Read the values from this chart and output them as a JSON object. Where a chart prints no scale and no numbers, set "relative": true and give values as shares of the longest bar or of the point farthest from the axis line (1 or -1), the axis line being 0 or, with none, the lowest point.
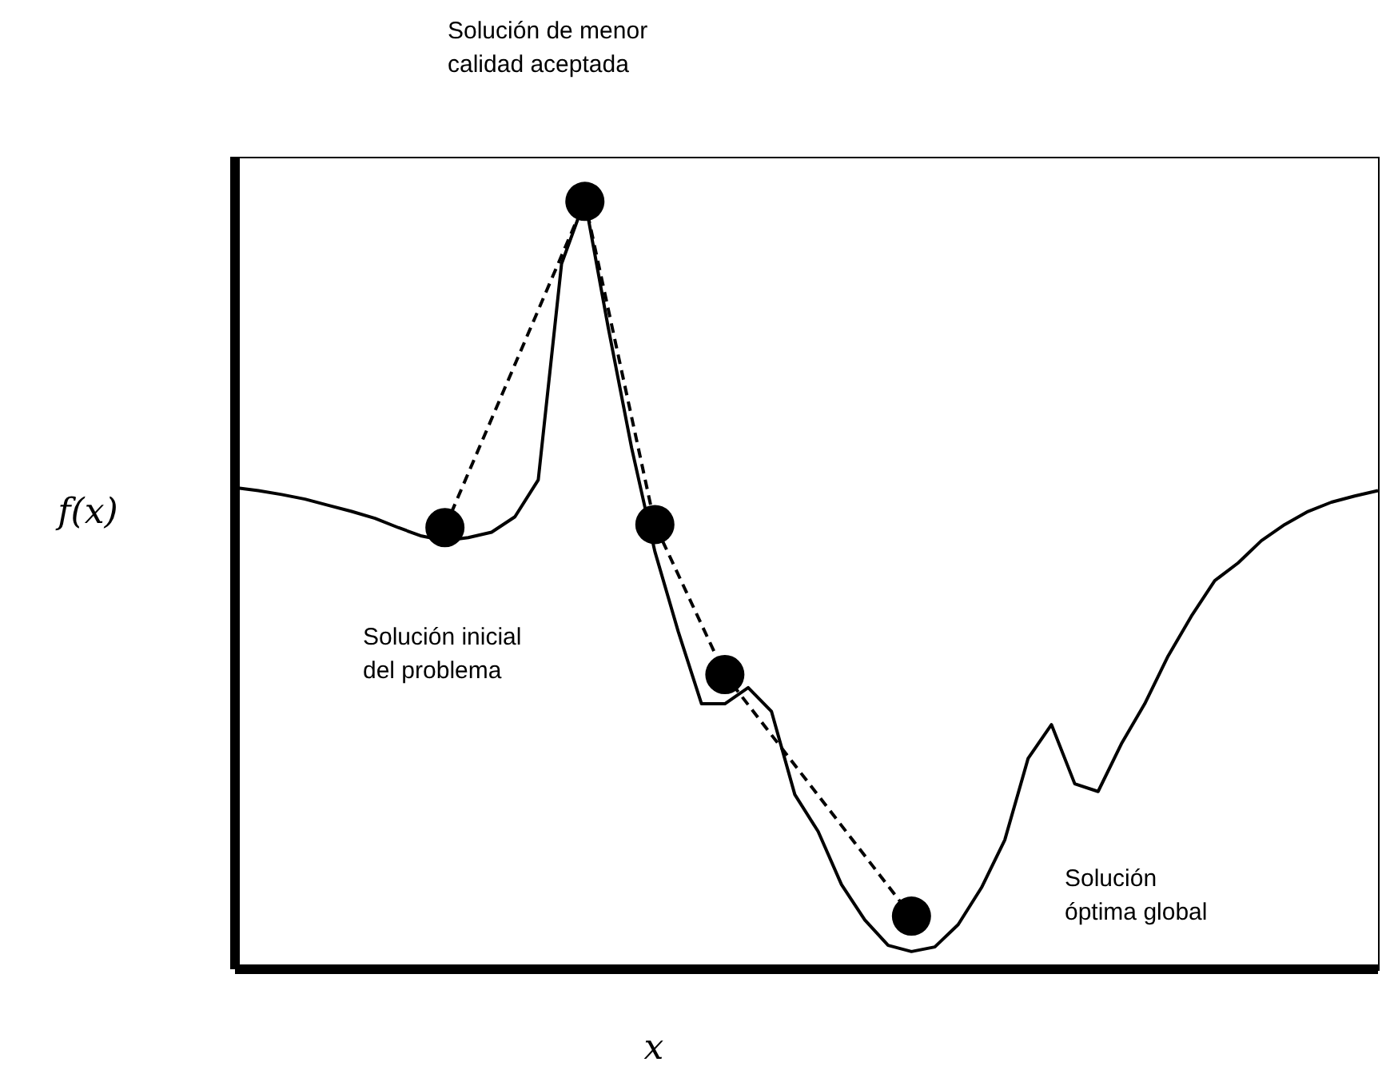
{
  "chart_data": {
    "type": "line",
    "relative": true,
    "xlabel": "x",
    "ylabel": "f(x)",
    "categories": [
      null,
      null,
      null,
      null,
      null,
      null,
      null,
      null,
      null,
      null,
      null,
      null,
      null,
      null,
      null,
      null,
      null,
      null,
      null,
      null,
      null,
      null,
      null,
      null,
      null,
      null,
      null,
      null,
      null,
      null,
      null,
      null,
      null,
      null,
      null,
      null,
      null,
      null,
      null,
      null,
      null,
      null,
      null,
      null,
      null,
      null,
      null,
      null,
      null,
      null
    ],
    "series": [
      {
        "type": "line",
        "color": "#000000",
        "line_style": "solid",
        "marker": "none",
        "values": [
          0.626,
          0.622,
          0.617,
          0.611,
          0.603,
          0.595,
          0.586,
          0.574,
          0.563,
          0.557,
          0.561,
          0.568,
          0.588,
          0.636,
          0.917,
          1.0,
          0.834,
          0.678,
          0.543,
          0.439,
          0.345,
          0.345,
          0.366,
          0.335,
          0.227,
          0.179,
          0.11,
          0.064,
          0.031,
          0.023,
          0.029,
          0.058,
          0.106,
          0.168,
          0.274,
          0.318,
          0.241,
          0.231,
          0.293,
          0.345,
          0.407,
          0.459,
          0.505,
          0.528,
          0.557,
          0.578,
          0.595,
          0.607,
          0.615,
          0.622
        ]
      },
      {
        "type": "line",
        "color": "#000000",
        "line_style": "dashed",
        "marker": "circle",
        "values": [
          null,
          null,
          null,
          null,
          null,
          null,
          null,
          null,
          null,
          0.574,
          null,
          null,
          null,
          null,
          null,
          0.998,
          null,
          null,
          0.578,
          null,
          null,
          0.383,
          null,
          null,
          null,
          null,
          null,
          null,
          null,
          0.069,
          null,
          null,
          null,
          null,
          null,
          null,
          null,
          null,
          null,
          null,
          null,
          null,
          null,
          null,
          null,
          null,
          null,
          null,
          null,
          null
        ]
      }
    ],
    "annotations": [
      "Solución de menor calidad aceptada",
      "Solución inicial del problema",
      "Solución óptima global"
    ]
  }
}
